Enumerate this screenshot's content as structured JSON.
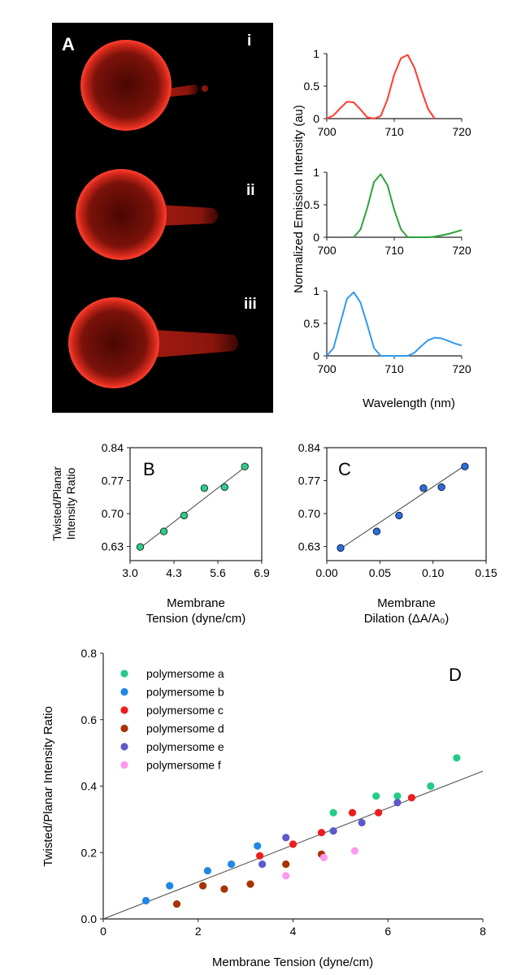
{
  "panel_a": {
    "label": "A",
    "roman": [
      "i",
      "ii",
      "iii"
    ],
    "spectra_ylabel": "Normalized Emission Intensity (au)",
    "spectra_xlabel": "Wavelength (nm)"
  },
  "panel_bc_ylabel": [
    "Twisted/Planar",
    "Intensity Ratio"
  ],
  "chart_data": [
    {
      "id": "spectrum-i",
      "type": "line",
      "xlim": [
        700,
        720
      ],
      "ylim": [
        0,
        1
      ],
      "xticks": [
        "700",
        "710",
        "720"
      ],
      "yticks": [
        "0",
        "0.5",
        "1"
      ],
      "color": "#ff3b2f",
      "x": [
        700,
        701,
        702,
        703,
        704,
        705,
        706,
        707,
        708,
        709,
        710,
        711,
        712,
        713,
        714,
        715,
        716
      ],
      "y": [
        0,
        0.05,
        0.16,
        0.26,
        0.25,
        0.14,
        0.02,
        0,
        0.04,
        0.3,
        0.68,
        0.93,
        0.98,
        0.78,
        0.45,
        0.15,
        0
      ]
    },
    {
      "id": "spectrum-ii",
      "type": "line",
      "xlim": [
        700,
        720
      ],
      "ylim": [
        0,
        1
      ],
      "xticks": [
        "700",
        "710",
        "720"
      ],
      "yticks": [
        "0",
        "0.5",
        "1"
      ],
      "color": "#2aa33a",
      "x": [
        704,
        705,
        706,
        707,
        708,
        709,
        710,
        711,
        712,
        713,
        714,
        715,
        716,
        717,
        718,
        719,
        720
      ],
      "y": [
        0,
        0.12,
        0.45,
        0.85,
        0.97,
        0.8,
        0.42,
        0.12,
        0,
        0,
        0,
        0,
        0.01,
        0.03,
        0.05,
        0.08,
        0.11
      ]
    },
    {
      "id": "spectrum-iii",
      "type": "line",
      "xlim": [
        700,
        720
      ],
      "ylim": [
        0,
        1
      ],
      "xticks": [
        "700",
        "710",
        "720"
      ],
      "yticks": [
        "0",
        "0.5",
        "1"
      ],
      "color": "#3399ee",
      "x": [
        700,
        701,
        702,
        703,
        704,
        705,
        706,
        707,
        708,
        709,
        710,
        711,
        712,
        713,
        714,
        715,
        716,
        717,
        718,
        719,
        720
      ],
      "y": [
        0,
        0.12,
        0.5,
        0.88,
        0.98,
        0.82,
        0.48,
        0.12,
        0,
        0,
        0,
        0,
        0,
        0.05,
        0.15,
        0.24,
        0.28,
        0.27,
        0.23,
        0.19,
        0.16
      ]
    },
    {
      "id": "panel-b",
      "type": "scatter",
      "label": "B",
      "xlabel": [
        "Membrane",
        "Tension (dyne/cm)"
      ],
      "xlim": [
        3.0,
        6.9
      ],
      "ylim": [
        0.6,
        0.84
      ],
      "xticks": [
        "3.0",
        "4.3",
        "5.6",
        "6.9"
      ],
      "xtick_values": [
        3.0,
        4.3,
        5.6,
        6.9
      ],
      "yticks": [
        "0.63",
        "0.70",
        "0.77",
        "0.84"
      ],
      "ytick_values": [
        0.63,
        0.7,
        0.77,
        0.84
      ],
      "color": "#2ecc8a",
      "x": [
        3.3,
        4.0,
        4.6,
        5.2,
        5.8,
        6.4
      ],
      "y": [
        0.629,
        0.662,
        0.696,
        0.754,
        0.756,
        0.8
      ],
      "fit": [
        [
          3.3,
          0.627
        ],
        [
          6.5,
          0.804
        ]
      ]
    },
    {
      "id": "panel-c",
      "type": "scatter",
      "label": "C",
      "xlabel": [
        "Membrane",
        "Dilation (ΔA/A₀)"
      ],
      "xlim": [
        0,
        0.15
      ],
      "ylim": [
        0.6,
        0.84
      ],
      "xticks": [
        "0.00",
        "0.05",
        "0.10",
        "0.15"
      ],
      "xtick_values": [
        0,
        0.05,
        0.1,
        0.15
      ],
      "yticks": [
        "0.63",
        "0.70",
        "0.77",
        "0.84"
      ],
      "ytick_values": [
        0.63,
        0.7,
        0.77,
        0.84
      ],
      "color": "#2a6fd6",
      "x": [
        0.013,
        0.047,
        0.068,
        0.091,
        0.108,
        0.13
      ],
      "y": [
        0.627,
        0.662,
        0.696,
        0.754,
        0.756,
        0.8
      ],
      "fit": [
        [
          0.012,
          0.624
        ],
        [
          0.13,
          0.802
        ]
      ]
    },
    {
      "id": "panel-d",
      "type": "scatter",
      "label": "D",
      "xlabel": "Membrane Tension (dyne/cm)",
      "ylabel": "Twisted/Planar Intensity Ratio",
      "xlim": [
        0,
        8
      ],
      "ylim": [
        0,
        0.8
      ],
      "xticks": [
        "0",
        "2",
        "4",
        "6",
        "8"
      ],
      "xtick_values": [
        0,
        2,
        4,
        6,
        8
      ],
      "yticks": [
        "0.0",
        "0.2",
        "0.4",
        "0.6",
        "0.8"
      ],
      "ytick_values": [
        0,
        0.2,
        0.4,
        0.6,
        0.8
      ],
      "fit": [
        [
          0,
          0
        ],
        [
          8,
          0.445
        ]
      ],
      "legend_position": "top-left",
      "series": [
        {
          "name": "polymersome a",
          "color": "#22cc88",
          "x": [
            4.85,
            5.75,
            6.2,
            6.9,
            7.45
          ],
          "y": [
            0.32,
            0.37,
            0.37,
            0.4,
            0.485
          ]
        },
        {
          "name": "polymersome b",
          "color": "#1e88e5",
          "x": [
            0.9,
            1.4,
            2.2,
            2.7,
            3.25
          ],
          "y": [
            0.055,
            0.1,
            0.145,
            0.165,
            0.22
          ]
        },
        {
          "name": "polymersome c",
          "color": "#ee1c1c",
          "x": [
            3.3,
            4.0,
            4.6,
            5.25,
            5.8,
            6.5
          ],
          "y": [
            0.19,
            0.225,
            0.26,
            0.32,
            0.32,
            0.365
          ]
        },
        {
          "name": "polymersome d",
          "color": "#a83200",
          "x": [
            1.55,
            2.1,
            2.55,
            3.1,
            3.85,
            4.6
          ],
          "y": [
            0.045,
            0.1,
            0.09,
            0.105,
            0.165,
            0.195
          ]
        },
        {
          "name": "polymersome e",
          "color": "#5a5ac8",
          "x": [
            3.35,
            3.85,
            4.85,
            5.45,
            6.2
          ],
          "y": [
            0.165,
            0.245,
            0.265,
            0.29,
            0.35
          ]
        },
        {
          "name": "polymersome f",
          "color": "#ff99ee",
          "x": [
            3.85,
            4.65,
            5.3
          ],
          "y": [
            0.13,
            0.185,
            0.205
          ]
        }
      ]
    }
  ]
}
